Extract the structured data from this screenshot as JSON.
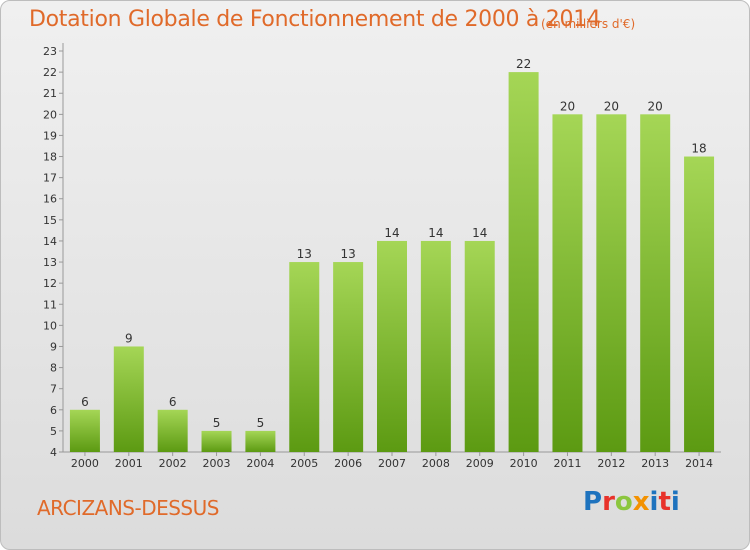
{
  "header": {
    "title": "Dotation Globale de Fonctionnement de 2000 à 2014",
    "unit_note": "(en milliers d'€)"
  },
  "footer": {
    "commune": "ARCIZANS-DESSUS",
    "brand": "Proxiti",
    "brand_colors": [
      "#1e73be",
      "#e8322a",
      "#8cc63f",
      "#f39200",
      "#1e73be",
      "#e8322a"
    ]
  },
  "colors": {
    "title": "#e06a2a",
    "bar_top": "#a5d656",
    "bar_bottom": "#5c9a12"
  },
  "chart_data": {
    "type": "bar",
    "title": "Dotation Globale de Fonctionnement de 2000 à 2014",
    "subtitle": "(en milliers d'€)",
    "xlabel": "",
    "ylabel": "",
    "categories": [
      "2000",
      "2001",
      "2002",
      "2003",
      "2004",
      "2005",
      "2006",
      "2007",
      "2008",
      "2009",
      "2010",
      "2011",
      "2012",
      "2013",
      "2014"
    ],
    "values": [
      6,
      9,
      6,
      5,
      5,
      13,
      13,
      14,
      14,
      14,
      22,
      20,
      20,
      20,
      18
    ],
    "ylim": [
      4,
      23
    ],
    "yticks": [
      4,
      5,
      6,
      7,
      8,
      9,
      10,
      11,
      12,
      13,
      14,
      15,
      16,
      17,
      18,
      19,
      20,
      21,
      22,
      23
    ],
    "grid": false,
    "data_labels": true
  }
}
